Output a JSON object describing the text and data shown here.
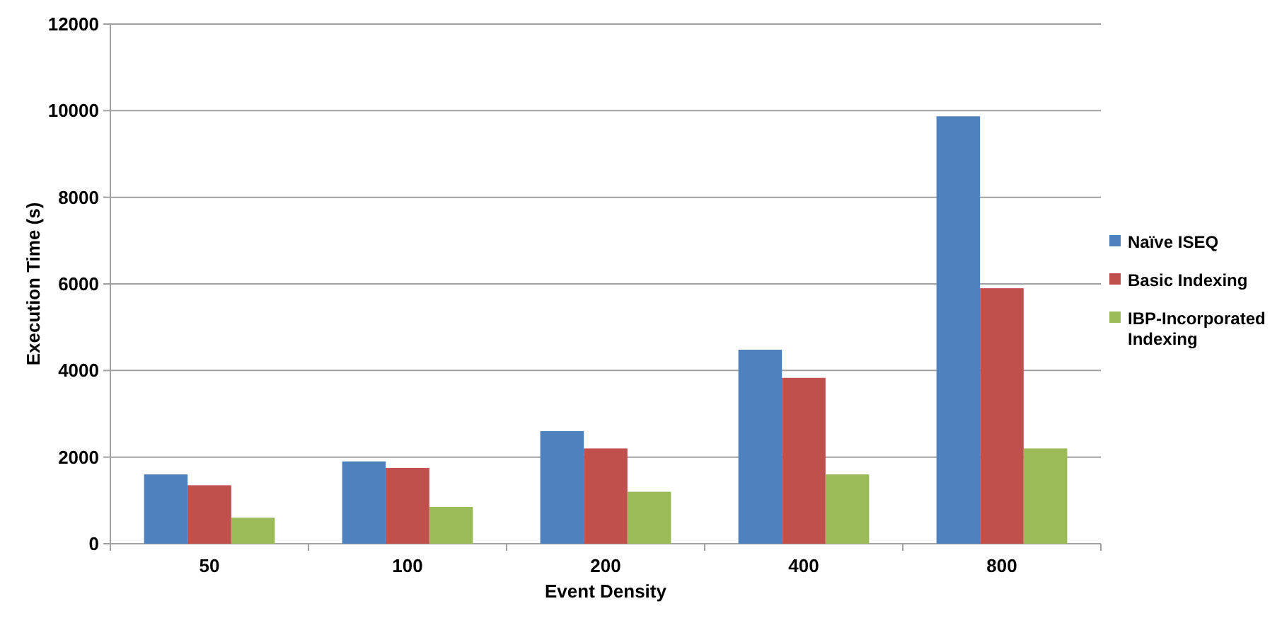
{
  "chart_data": {
    "type": "bar",
    "xlabel": "Event Density",
    "ylabel": "Execution Time (s)",
    "categories": [
      "50",
      "100",
      "200",
      "400",
      "800"
    ],
    "series": [
      {
        "name": "Naïve ISEQ",
        "color": "#4f81bd",
        "values": [
          1600,
          1900,
          2600,
          4480,
          9870
        ]
      },
      {
        "name": "Basic Indexing",
        "color": "#c0504d",
        "values": [
          1350,
          1750,
          2200,
          3830,
          5900
        ]
      },
      {
        "name": "IBP-Incorporated Indexing",
        "color": "#9bbb59",
        "values": [
          600,
          850,
          1200,
          1600,
          2200
        ]
      }
    ],
    "ylim": [
      0,
      12000
    ],
    "yticks": [
      0,
      2000,
      4000,
      6000,
      8000,
      10000,
      12000
    ],
    "grid": "y",
    "legend": "right"
  }
}
